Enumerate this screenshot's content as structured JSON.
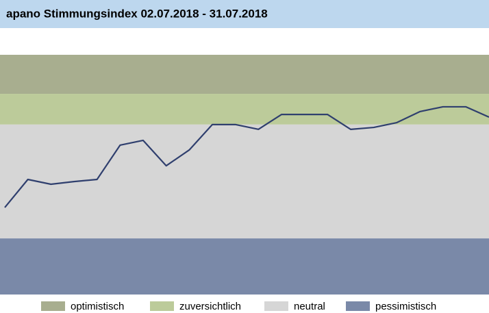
{
  "chart_data": {
    "type": "line",
    "title": "apano Stimmungsindex 02.07.2018 - 31.07.2018",
    "categories": [
      null,
      null,
      null,
      null,
      null,
      null,
      null,
      null,
      null,
      null,
      null,
      null,
      null,
      null,
      null,
      null,
      null,
      null,
      null,
      null,
      null,
      null
    ],
    "series": [
      {
        "color": "#2f3f6e",
        "values": [
          36.3,
          48,
          46,
          47.1,
          48,
          62.3,
          64.3,
          53.7,
          60.3,
          70.9,
          70.9,
          68.9,
          75.1,
          75.1,
          75.1,
          68.9,
          69.7,
          71.7,
          76.3,
          78.3,
          78.3,
          74
        ]
      }
    ],
    "bands": [
      {
        "name": "optimistisch",
        "color": "#a8ae8f",
        "from": 83.7,
        "to": 100
      },
      {
        "name": "zuversichtlich",
        "color": "#bccb9a",
        "from": 70.9,
        "to": 83.7
      },
      {
        "name": "neutral",
        "color": "#d6d6d6",
        "from": 23.4,
        "to": 70.9
      },
      {
        "name": "pessimistisch",
        "color": "#7a89a8",
        "from": 0,
        "to": 23.4
      }
    ],
    "ylim": [
      0,
      100
    ]
  }
}
